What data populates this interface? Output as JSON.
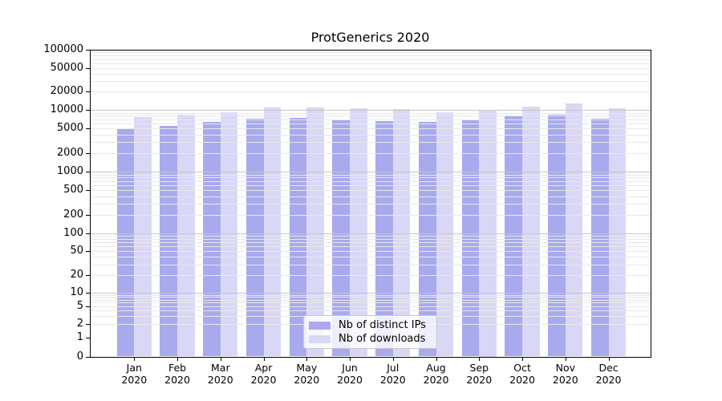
{
  "title": "ProtGenerics 2020",
  "chart_data": {
    "type": "bar",
    "title": "ProtGenerics 2020",
    "categories": [
      "Jan",
      "Feb",
      "Mar",
      "Apr",
      "May",
      "Jun",
      "Jul",
      "Aug",
      "Sep",
      "Oct",
      "Nov",
      "Dec"
    ],
    "category_year_line": "2020",
    "series": [
      {
        "name": "Nb of distinct IPs",
        "color": "#a9a9ee",
        "values": [
          5000,
          5500,
          6300,
          7200,
          7500,
          6800,
          6600,
          6300,
          6800,
          8000,
          8400,
          7100
        ]
      },
      {
        "name": "Nb of downloads",
        "color": "#d8d8f6",
        "values": [
          7700,
          8400,
          9100,
          11000,
          11000,
          10600,
          10400,
          9200,
          10000,
          11300,
          12700,
          10700
        ]
      }
    ],
    "y_axis": {
      "scale": "symlog",
      "ticks": [
        0,
        1,
        2,
        5,
        10,
        20,
        50,
        100,
        200,
        500,
        1000,
        2000,
        5000,
        10000,
        20000,
        50000,
        100000
      ],
      "range": [
        0,
        100000
      ],
      "label": ""
    },
    "x_axis": {
      "label": ""
    },
    "grid": {
      "horizontal": true,
      "minor_lines": true
    },
    "legend": {
      "position": "bottom-center-inside"
    }
  },
  "colors": {
    "bar_distinct_ips": "#a9a9ee",
    "bar_downloads": "#d8d8f6",
    "grid_major": "#c6c6c6",
    "grid_minor": "#e8e8e8",
    "axis": "#000000",
    "background": "#ffffff"
  }
}
